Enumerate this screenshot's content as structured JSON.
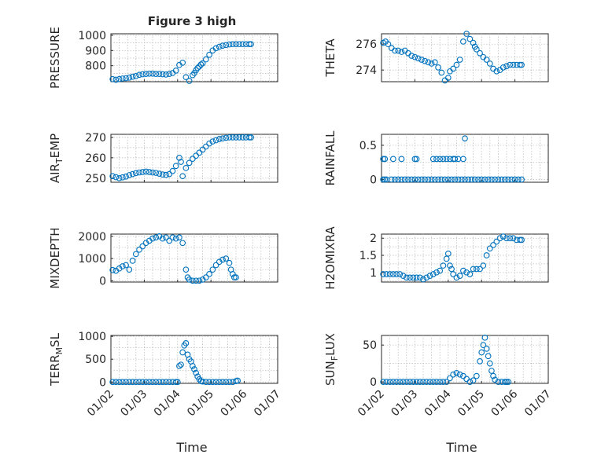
{
  "figure": {
    "title": "Figure 3 high",
    "x_axis_label": "Time"
  },
  "chart_data": [
    {
      "type": "scatter",
      "ylabel": "PRESSURE",
      "ylim": [
        695,
        1010
      ],
      "yticks": [
        800,
        900,
        1000
      ],
      "xlim": [
        0,
        5
      ],
      "xticks": [
        "01/02",
        "01/03",
        "01/04",
        "01/05",
        "01/06",
        "01/07"
      ],
      "grid": true,
      "x": [
        0.05,
        0.15,
        0.25,
        0.35,
        0.45,
        0.55,
        0.65,
        0.75,
        0.85,
        0.95,
        1.05,
        1.15,
        1.25,
        1.35,
        1.45,
        1.55,
        1.65,
        1.75,
        1.85,
        1.95,
        2.05,
        2.15,
        2.25,
        2.35,
        2.45,
        2.5,
        2.55,
        2.6,
        2.65,
        2.7,
        2.75,
        2.85,
        2.95,
        3.05,
        3.15,
        3.25,
        3.35,
        3.45,
        3.55,
        3.65,
        3.75,
        3.85,
        3.95,
        4.05,
        4.15,
        4.2
      ],
      "y": [
        712,
        708,
        712,
        716,
        718,
        722,
        728,
        732,
        740,
        744,
        746,
        748,
        748,
        746,
        746,
        744,
        742,
        746,
        752,
        768,
        805,
        820,
        725,
        700,
        738,
        752,
        770,
        785,
        795,
        808,
        816,
        842,
        872,
        900,
        915,
        925,
        932,
        936,
        940,
        942,
        942,
        942,
        942,
        942,
        942,
        942
      ]
    },
    {
      "type": "scatter",
      "ylabel": "THETA",
      "ylim": [
        273.1,
        276.8
      ],
      "yticks": [
        274,
        276
      ],
      "xlim": [
        0,
        5
      ],
      "xticks": [
        "01/02",
        "01/03",
        "01/04",
        "01/05",
        "01/06",
        "01/07"
      ],
      "grid": true,
      "x": [
        0.05,
        0.12,
        0.2,
        0.3,
        0.4,
        0.5,
        0.6,
        0.7,
        0.8,
        0.9,
        1.0,
        1.1,
        1.2,
        1.3,
        1.4,
        1.5,
        1.6,
        1.7,
        1.8,
        1.9,
        2.0,
        2.05,
        2.15,
        2.25,
        2.35,
        2.45,
        2.55,
        2.65,
        2.75,
        2.8,
        2.85,
        2.95,
        3.05,
        3.15,
        3.25,
        3.35,
        3.45,
        3.55,
        3.65,
        3.75,
        3.85,
        3.95,
        4.05,
        4.15,
        4.2
      ],
      "y": [
        276.1,
        276.2,
        276.0,
        275.7,
        275.5,
        275.5,
        275.4,
        275.5,
        275.3,
        275.1,
        275.0,
        274.9,
        274.8,
        274.7,
        274.6,
        274.5,
        274.6,
        274.2,
        273.8,
        273.2,
        273.4,
        273.9,
        274.1,
        274.4,
        274.8,
        276.2,
        276.8,
        276.4,
        276.1,
        275.8,
        275.6,
        275.3,
        275.0,
        274.8,
        274.5,
        274.1,
        273.9,
        274.0,
        274.2,
        274.3,
        274.4,
        274.4,
        274.4,
        274.4,
        274.4
      ]
    },
    {
      "type": "scatter",
      "ylabel": "AIR_TEMP",
      "ylabel_parts": [
        "AIR",
        "T",
        "EMP"
      ],
      "ylim": [
        248,
        271.5
      ],
      "yticks": [
        250,
        260,
        270
      ],
      "xlim": [
        0,
        5
      ],
      "xticks": [
        "01/02",
        "01/03",
        "01/04",
        "01/05",
        "01/06",
        "01/07"
      ],
      "grid": true,
      "x": [
        0.05,
        0.15,
        0.25,
        0.35,
        0.45,
        0.55,
        0.65,
        0.75,
        0.85,
        0.95,
        1.05,
        1.15,
        1.25,
        1.35,
        1.45,
        1.55,
        1.65,
        1.75,
        1.85,
        1.95,
        2.05,
        2.1,
        2.15,
        2.25,
        2.35,
        2.45,
        2.55,
        2.65,
        2.75,
        2.85,
        2.95,
        3.05,
        3.15,
        3.25,
        3.35,
        3.45,
        3.55,
        3.65,
        3.75,
        3.85,
        3.95,
        4.05,
        4.15,
        4.2
      ],
      "y": [
        251.0,
        250.5,
        250.0,
        250.4,
        250.8,
        251.5,
        252.0,
        252.5,
        252.8,
        253.0,
        253.2,
        253.0,
        252.8,
        252.6,
        252.2,
        251.8,
        251.6,
        252.0,
        253.5,
        256.0,
        260.0,
        258.0,
        251.0,
        255.0,
        257.5,
        259.5,
        261.0,
        262.5,
        264.0,
        265.5,
        267.0,
        268.0,
        268.6,
        269.2,
        269.5,
        269.8,
        270.0,
        270.0,
        270.0,
        270.0,
        270.0,
        270.0,
        270.0,
        270.0
      ]
    },
    {
      "type": "scatter",
      "ylabel": "RAINFALL",
      "ylim": [
        -0.04,
        0.66
      ],
      "yticks": [
        0,
        0.5
      ],
      "xlim": [
        0,
        5
      ],
      "xticks": [
        "01/02",
        "01/03",
        "01/04",
        "01/05",
        "01/06",
        "01/07"
      ],
      "grid": true,
      "x": [
        0.05,
        0.1,
        0.15,
        0.3,
        0.4,
        0.5,
        0.6,
        0.7,
        0.8,
        0.9,
        1.0,
        1.1,
        1.2,
        1.3,
        1.4,
        1.5,
        1.6,
        1.7,
        1.8,
        1.9,
        2.0,
        2.1,
        2.2,
        2.3,
        2.4,
        2.5,
        2.6,
        2.7,
        2.8,
        2.9,
        3.0,
        3.1,
        3.2,
        3.3,
        3.4,
        3.5,
        3.6,
        3.7,
        3.8,
        3.9,
        4.0,
        4.1,
        4.2,
        0.05,
        0.1,
        0.35,
        0.6,
        1.0,
        1.05,
        1.55,
        1.65,
        1.75,
        1.85,
        1.95,
        2.05,
        2.15,
        2.2,
        2.3,
        2.45,
        2.5
      ],
      "y": [
        0,
        0,
        0,
        0,
        0,
        0,
        0,
        0,
        0,
        0,
        0,
        0,
        0,
        0,
        0,
        0,
        0,
        0,
        0,
        0,
        0,
        0,
        0,
        0,
        0,
        0,
        0,
        0,
        0,
        0,
        0,
        0,
        0,
        0,
        0,
        0,
        0,
        0,
        0,
        0,
        0,
        0,
        0,
        0.3,
        0.3,
        0.3,
        0.3,
        0.3,
        0.3,
        0.3,
        0.3,
        0.3,
        0.3,
        0.3,
        0.3,
        0.3,
        0.3,
        0.3,
        0.3,
        0.6
      ]
    },
    {
      "type": "scatter",
      "ylabel": "MIXDEPTH",
      "ylim": [
        -60,
        2100
      ],
      "yticks": [
        0,
        1000,
        2000
      ],
      "xlim": [
        0,
        5
      ],
      "xticks": [
        "01/02",
        "01/03",
        "01/04",
        "01/05",
        "01/06",
        "01/07"
      ],
      "grid": true,
      "x": [
        0.05,
        0.15,
        0.25,
        0.35,
        0.45,
        0.55,
        0.65,
        0.75,
        0.85,
        0.95,
        1.05,
        1.15,
        1.25,
        1.35,
        1.45,
        1.55,
        1.65,
        1.75,
        1.85,
        1.95,
        2.05,
        2.15,
        2.25,
        2.3,
        2.35,
        2.45,
        2.55,
        2.65,
        2.75,
        2.85,
        2.95,
        3.05,
        3.15,
        3.25,
        3.35,
        3.45,
        3.55,
        3.6,
        3.65,
        3.7,
        3.75
      ],
      "y": [
        480,
        450,
        550,
        650,
        700,
        500,
        900,
        1200,
        1400,
        1550,
        1700,
        1800,
        1900,
        1950,
        2000,
        1900,
        1950,
        1800,
        1950,
        1900,
        1950,
        1700,
        500,
        150,
        50,
        0,
        0,
        0,
        50,
        150,
        300,
        500,
        700,
        850,
        950,
        1000,
        800,
        500,
        300,
        150,
        150
      ]
    },
    {
      "type": "scatter",
      "ylabel": "H2OMIXRA",
      "ylim": [
        0.72,
        2.12
      ],
      "yticks": [
        1,
        1.5,
        2
      ],
      "xlim": [
        0,
        5
      ],
      "xticks": [
        "01/02",
        "01/03",
        "01/04",
        "01/05",
        "01/06",
        "01/07"
      ],
      "grid": true,
      "x": [
        0.05,
        0.15,
        0.25,
        0.35,
        0.45,
        0.55,
        0.65,
        0.75,
        0.85,
        0.95,
        1.05,
        1.15,
        1.25,
        1.35,
        1.45,
        1.55,
        1.65,
        1.75,
        1.85,
        1.95,
        2.0,
        2.05,
        2.1,
        2.15,
        2.25,
        2.35,
        2.45,
        2.55,
        2.65,
        2.75,
        2.85,
        2.95,
        3.05,
        3.15,
        3.25,
        3.35,
        3.45,
        3.55,
        3.65,
        3.75,
        3.85,
        3.95,
        4.05,
        4.15,
        4.2
      ],
      "y": [
        0.95,
        0.95,
        0.95,
        0.95,
        0.95,
        0.95,
        0.9,
        0.85,
        0.85,
        0.85,
        0.85,
        0.85,
        0.8,
        0.85,
        0.9,
        0.95,
        1.0,
        1.05,
        1.2,
        1.4,
        1.55,
        1.2,
        1.1,
        0.95,
        0.85,
        0.9,
        1.05,
        1.0,
        0.95,
        1.1,
        1.1,
        1.1,
        1.2,
        1.5,
        1.7,
        1.8,
        1.9,
        2.0,
        2.05,
        2.0,
        2.0,
        2.0,
        1.95,
        1.95,
        1.95
      ]
    },
    {
      "type": "scatter",
      "ylabel": "TERR_MSL",
      "ylabel_parts": [
        "TERR",
        "M",
        "SL"
      ],
      "ylim": [
        -30,
        1020
      ],
      "yticks": [
        0,
        500,
        1000
      ],
      "xlim": [
        0,
        5
      ],
      "xticks": [
        "01/02",
        "01/03",
        "01/04",
        "01/05",
        "01/06",
        "01/07"
      ],
      "grid": true,
      "x": [
        0.05,
        0.15,
        0.25,
        0.35,
        0.45,
        0.55,
        0.65,
        0.75,
        0.85,
        0.95,
        1.05,
        1.15,
        1.25,
        1.35,
        1.45,
        1.55,
        1.65,
        1.75,
        1.85,
        1.95,
        2.0,
        2.05,
        2.1,
        2.15,
        2.2,
        2.25,
        2.3,
        2.35,
        2.4,
        2.45,
        2.5,
        2.55,
        2.6,
        2.65,
        2.7,
        2.75,
        2.85,
        2.95,
        3.05,
        3.15,
        3.25,
        3.35,
        3.45,
        3.55,
        3.65,
        3.75,
        3.8
      ],
      "y": [
        0,
        0,
        0,
        0,
        0,
        0,
        0,
        0,
        0,
        0,
        0,
        0,
        0,
        0,
        0,
        0,
        0,
        0,
        0,
        0,
        0,
        350,
        380,
        650,
        800,
        850,
        600,
        500,
        450,
        350,
        280,
        200,
        120,
        60,
        20,
        10,
        0,
        0,
        0,
        0,
        0,
        0,
        0,
        0,
        0,
        20,
        30
      ]
    },
    {
      "type": "scatter",
      "ylabel": "SUN_FLUX",
      "ylabel_parts": [
        "SUN",
        "F",
        "LUX"
      ],
      "ylim": [
        -2,
        63
      ],
      "yticks": [
        0,
        50
      ],
      "xlim": [
        0,
        5
      ],
      "xticks": [
        "01/02",
        "01/03",
        "01/04",
        "01/05",
        "01/06",
        "01/07"
      ],
      "grid": true,
      "x": [
        0.05,
        0.15,
        0.25,
        0.35,
        0.45,
        0.55,
        0.65,
        0.75,
        0.85,
        0.95,
        1.05,
        1.15,
        1.25,
        1.35,
        1.45,
        1.55,
        1.65,
        1.75,
        1.85,
        1.95,
        2.05,
        2.15,
        2.25,
        2.35,
        2.45,
        2.55,
        2.65,
        2.75,
        2.85,
        2.95,
        3.0,
        3.05,
        3.1,
        3.15,
        3.2,
        3.25,
        3.3,
        3.35,
        3.4,
        3.5,
        3.6,
        3.7,
        3.75,
        3.8
      ],
      "y": [
        0,
        0,
        0,
        0,
        0,
        0,
        0,
        0,
        0,
        0,
        0,
        0,
        0,
        0,
        0,
        0,
        0,
        0,
        0,
        0,
        5,
        10,
        12,
        10,
        8,
        4,
        0,
        2,
        8,
        28,
        40,
        50,
        60,
        45,
        35,
        25,
        15,
        8,
        3,
        0,
        0,
        0,
        0,
        0
      ]
    }
  ]
}
